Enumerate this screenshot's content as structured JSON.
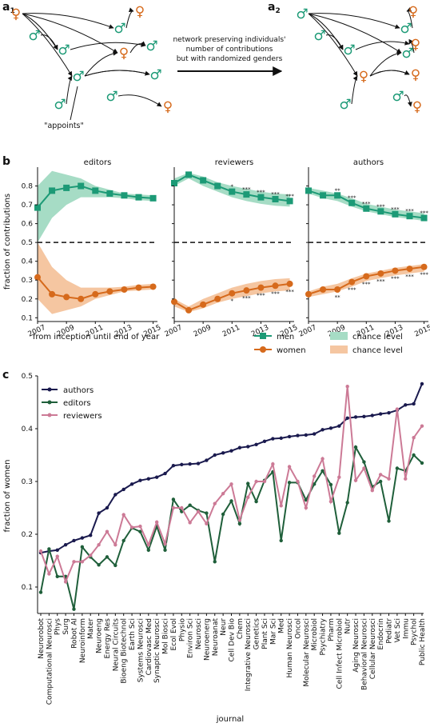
{
  "panel_labels": {
    "a1": "a",
    "a1_sub": "1",
    "a2": "a",
    "a2_sub": "2",
    "b": "b",
    "c": "c"
  },
  "network": {
    "arrow_caption_lines": [
      "network preserving individuals'",
      "number of contributions",
      "but with randomized genders"
    ],
    "appoints_label": "\"appoints\"",
    "men_symbol": "♂",
    "women_symbol": "♀",
    "men_color": "#1c9a76",
    "women_color": "#d66a1c"
  },
  "chart_data": [
    {
      "type": "line",
      "panel": "b",
      "ylabel": "fraction of contributions",
      "xlabel": "from inception until end of year",
      "ylim": [
        0.08,
        0.9
      ],
      "yticks": [
        "0.1",
        "0.2",
        "0.3",
        "0.4",
        "0.5",
        "0.6",
        "0.7",
        "0.8"
      ],
      "xticks": [
        "2007",
        "2009",
        "2011",
        "2013",
        "2015"
      ],
      "reference_line": 0.5,
      "legend": {
        "men": "men",
        "women": "women",
        "chance_men": "chance level",
        "chance_women": "chance level"
      },
      "colors": {
        "men": "#1c9a76",
        "women": "#d66a1c",
        "chance_men": "#a6dcc5",
        "chance_women": "#f5c6a1"
      },
      "subplots": [
        {
          "title": "editors",
          "x": [
            2007,
            2008,
            2009,
            2010,
            2011,
            2012,
            2013,
            2014,
            2015
          ],
          "men": [
            0.685,
            0.775,
            0.79,
            0.8,
            0.775,
            0.76,
            0.75,
            0.74,
            0.735
          ],
          "women": [
            0.315,
            0.225,
            0.21,
            0.2,
            0.225,
            0.24,
            0.25,
            0.26,
            0.265
          ],
          "chance_men_low": [
            0.5,
            0.63,
            0.7,
            0.74,
            0.74,
            0.74,
            0.735,
            0.725,
            0.72
          ],
          "chance_men_high": [
            0.8,
            0.88,
            0.86,
            0.84,
            0.8,
            0.78,
            0.76,
            0.755,
            0.75
          ],
          "chance_women_low": [
            0.2,
            0.12,
            0.14,
            0.16,
            0.2,
            0.22,
            0.24,
            0.245,
            0.25
          ],
          "chance_women_high": [
            0.5,
            0.37,
            0.3,
            0.26,
            0.26,
            0.26,
            0.265,
            0.275,
            0.28
          ],
          "men_stars": [
            "",
            "",
            "",
            "",
            "",
            "",
            "",
            "",
            ""
          ],
          "women_stars": [
            "",
            "",
            "",
            "",
            "",
            "",
            "",
            "",
            ""
          ]
        },
        {
          "title": "reviewers",
          "x": [
            2007,
            2008,
            2009,
            2010,
            2011,
            2012,
            2013,
            2014,
            2015
          ],
          "men": [
            0.815,
            0.86,
            0.83,
            0.8,
            0.77,
            0.755,
            0.74,
            0.73,
            0.72
          ],
          "women": [
            0.185,
            0.14,
            0.17,
            0.2,
            0.23,
            0.245,
            0.26,
            0.27,
            0.28
          ],
          "chance_men_low": [
            0.8,
            0.84,
            0.8,
            0.77,
            0.74,
            0.72,
            0.705,
            0.695,
            0.69
          ],
          "chance_men_high": [
            0.84,
            0.87,
            0.85,
            0.82,
            0.8,
            0.785,
            0.77,
            0.76,
            0.755
          ],
          "chance_women_low": [
            0.16,
            0.13,
            0.15,
            0.18,
            0.2,
            0.215,
            0.23,
            0.24,
            0.245
          ],
          "chance_women_high": [
            0.2,
            0.16,
            0.2,
            0.23,
            0.26,
            0.28,
            0.295,
            0.305,
            0.31
          ],
          "men_stars": [
            "",
            "",
            "",
            "",
            "*",
            "***",
            "***",
            "***",
            "***"
          ],
          "women_stars": [
            "",
            "",
            "",
            "",
            "*",
            "***",
            "***",
            "***",
            "***"
          ]
        },
        {
          "title": "authors",
          "x": [
            2007,
            2008,
            2009,
            2010,
            2011,
            2012,
            2013,
            2014,
            2015
          ],
          "men": [
            0.775,
            0.75,
            0.75,
            0.71,
            0.68,
            0.665,
            0.65,
            0.64,
            0.63
          ],
          "women": [
            0.225,
            0.25,
            0.25,
            0.29,
            0.32,
            0.335,
            0.35,
            0.36,
            0.37
          ],
          "chance_men_low": [
            0.76,
            0.735,
            0.72,
            0.69,
            0.665,
            0.65,
            0.635,
            0.625,
            0.615
          ],
          "chance_men_high": [
            0.79,
            0.775,
            0.76,
            0.735,
            0.705,
            0.69,
            0.675,
            0.665,
            0.655
          ],
          "chance_women_low": [
            0.21,
            0.225,
            0.24,
            0.265,
            0.295,
            0.31,
            0.325,
            0.335,
            0.345
          ],
          "chance_women_high": [
            0.24,
            0.265,
            0.28,
            0.31,
            0.335,
            0.35,
            0.365,
            0.375,
            0.385
          ],
          "men_stars": [
            "",
            "",
            "**",
            "***",
            "***",
            "***",
            "***",
            "***",
            "***"
          ],
          "women_stars": [
            "",
            "",
            "**",
            "***",
            "***",
            "***",
            "***",
            "***",
            "***"
          ]
        }
      ]
    },
    {
      "type": "line",
      "panel": "c",
      "ylabel": "fraction of women",
      "xlabel": "journal",
      "ylim": [
        0.05,
        0.5
      ],
      "yticks": [
        "0.1",
        "0.2",
        "0.3",
        "0.4",
        "0.5"
      ],
      "legend_position": "top-left",
      "categories": [
        "Neurorobot",
        "Computational Neurosci",
        "Phys",
        "Surg",
        "Robot AI",
        "Neuroinform",
        "Mater",
        "Neuroeng",
        "Energy Res",
        "Neural Circuits",
        "Bioeng Biotechnol",
        "Earth Sci",
        "Systems Neurosci",
        "Cardiovasc Med",
        "Synaptic Neurosci",
        "Mol Biosci",
        "Ecol Evol",
        "Physio",
        "Environ Sci",
        "Neurosci",
        "Neuroenerg",
        "Neuroanat",
        "Neur",
        "Cell Dev Bio",
        "Chem",
        "Integrative Neurosci",
        "Genetics",
        "Plant Sci",
        "Mar Sci",
        "Med",
        "Human Neurosci",
        "Oncol",
        "Molecular Neurosci",
        "Microbiol",
        "Psychiatry",
        "Pharm",
        "Cell Infect Microbiol",
        "Nutr",
        "Aging Neurosci",
        "Behavioral Neurosci",
        "Cellular Neurosci",
        "Endocrin",
        "Pediatr",
        "Vet Sci",
        "Immu",
        "Psychol",
        "Public Health"
      ],
      "series": [
        {
          "name": "authors",
          "color": "#1a1a4e",
          "values": [
            0.165,
            0.168,
            0.17,
            0.18,
            0.188,
            0.193,
            0.198,
            0.24,
            0.25,
            0.275,
            0.285,
            0.295,
            0.302,
            0.305,
            0.308,
            0.315,
            0.33,
            0.332,
            0.333,
            0.334,
            0.34,
            0.35,
            0.354,
            0.358,
            0.364,
            0.366,
            0.37,
            0.376,
            0.381,
            0.382,
            0.385,
            0.387,
            0.388,
            0.39,
            0.398,
            0.401,
            0.405,
            0.42,
            0.422,
            0.423,
            0.425,
            0.428,
            0.43,
            0.435,
            0.445,
            0.447,
            0.485
          ]
        },
        {
          "name": "editors",
          "color": "#1f5f3a",
          "values": [
            0.09,
            0.172,
            0.12,
            0.12,
            0.058,
            0.176,
            0.157,
            0.142,
            0.157,
            0.141,
            0.188,
            0.212,
            0.205,
            0.17,
            0.215,
            0.17,
            0.266,
            0.243,
            0.255,
            0.245,
            0.24,
            0.148,
            0.238,
            0.263,
            0.22,
            0.296,
            0.262,
            0.302,
            0.318,
            0.188,
            0.298,
            0.298,
            0.265,
            0.295,
            0.32,
            0.294,
            0.202,
            0.26,
            0.365,
            0.337,
            0.29,
            0.3,
            0.225,
            0.325,
            0.32,
            0.35,
            0.335
          ]
        },
        {
          "name": "reviewers",
          "color": "#cc7a96",
          "values": [
            0.168,
            0.125,
            0.158,
            0.11,
            0.148,
            0.148,
            0.16,
            0.18,
            0.205,
            0.18,
            0.237,
            0.213,
            0.215,
            0.18,
            0.223,
            0.182,
            0.25,
            0.25,
            0.222,
            0.243,
            0.22,
            0.258,
            0.277,
            0.295,
            0.227,
            0.27,
            0.3,
            0.3,
            0.333,
            0.254,
            0.328,
            0.3,
            0.25,
            0.31,
            0.343,
            0.262,
            0.308,
            0.48,
            0.302,
            0.325,
            0.283,
            0.313,
            0.305,
            0.437,
            0.305,
            0.383,
            0.405
          ]
        }
      ]
    }
  ]
}
